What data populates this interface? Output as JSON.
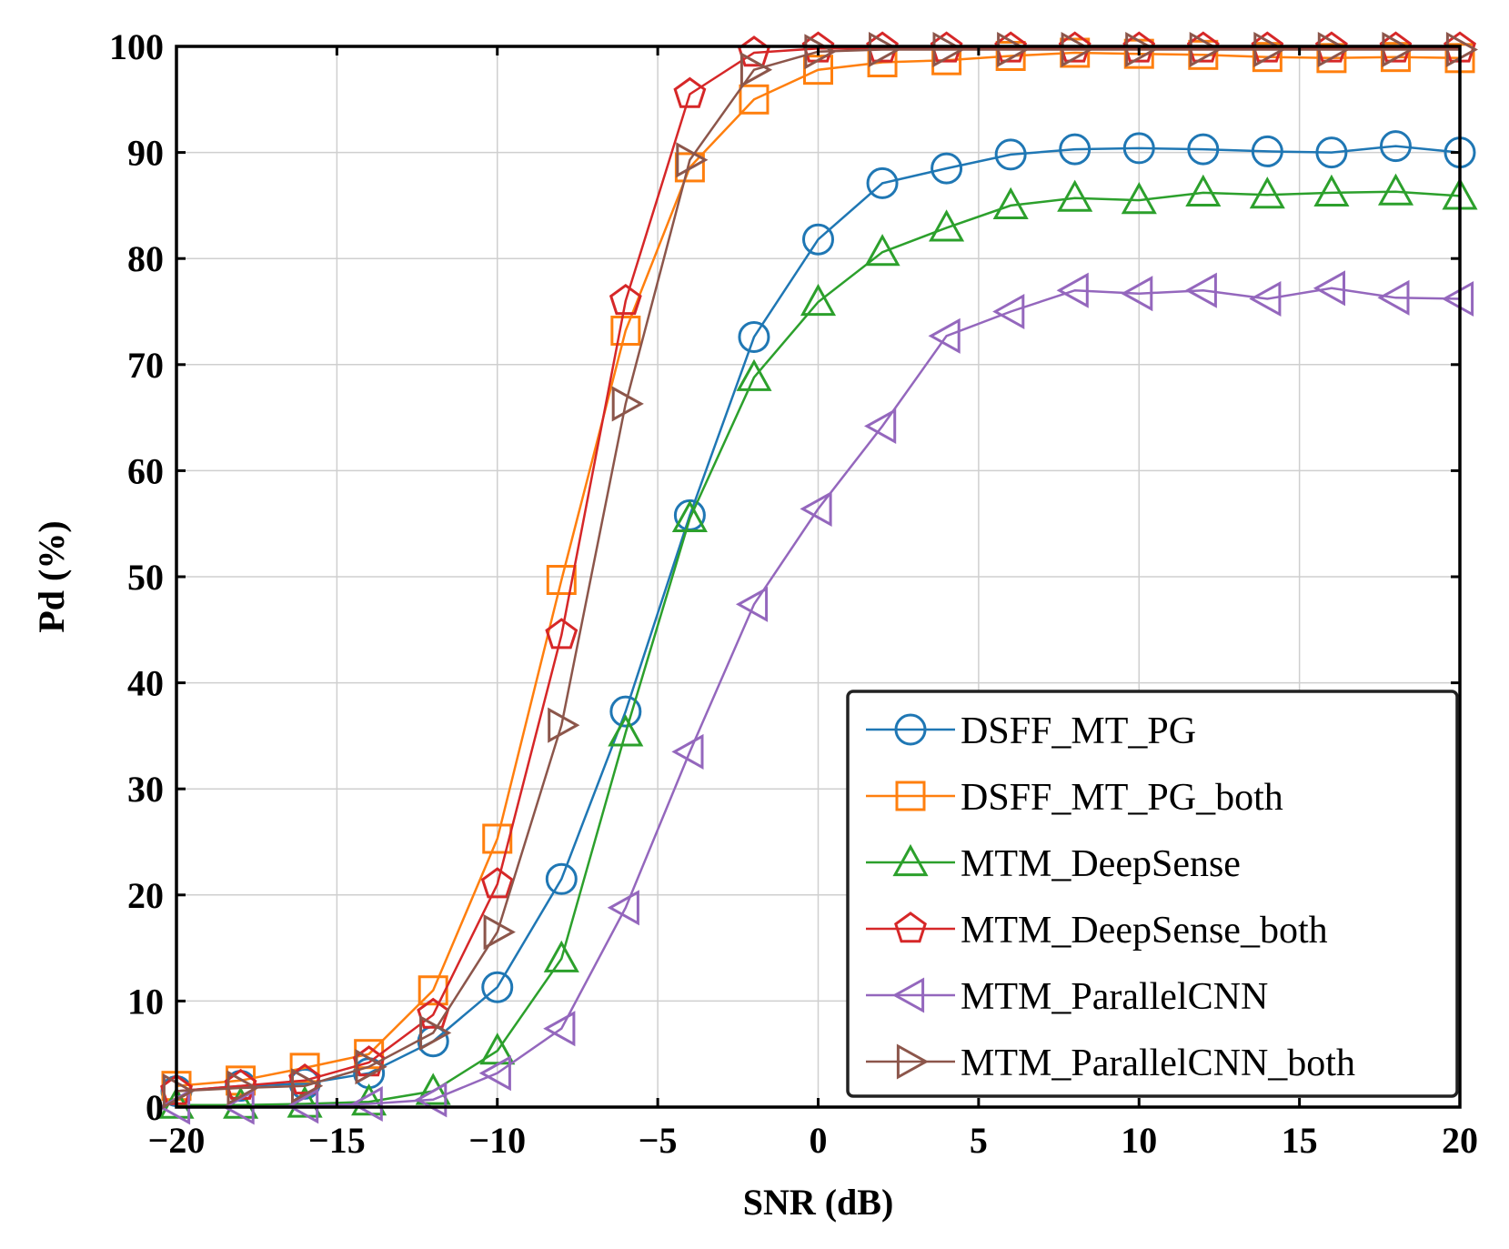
{
  "chart_data": {
    "type": "line",
    "title": "",
    "xlabel": "SNR (dB)",
    "ylabel": "Pd  (%)",
    "xlim": [
      -20,
      20
    ],
    "ylim": [
      0,
      100
    ],
    "xticks": [
      -20,
      -15,
      -10,
      -5,
      0,
      5,
      10,
      15,
      20
    ],
    "xtick_labels": [
      "−20",
      "−15",
      "−10",
      "−5",
      "0",
      "5",
      "10",
      "15",
      "20"
    ],
    "yticks": [
      0,
      10,
      20,
      30,
      40,
      50,
      60,
      70,
      80,
      90,
      100
    ],
    "ytick_labels": [
      "0",
      "10",
      "20",
      "30",
      "40",
      "50",
      "60",
      "70",
      "80",
      "90",
      "100"
    ],
    "grid": true,
    "legend_position": "bottom-right",
    "x": [
      -20,
      -18,
      -16,
      -14,
      -12,
      -10,
      -8,
      -6,
      -4,
      -2,
      0,
      2,
      4,
      6,
      8,
      10,
      12,
      14,
      16,
      18,
      20
    ],
    "series": [
      {
        "name": "DSFF_MT_PG",
        "color": "#1f77b4",
        "marker": "circle",
        "values": [
          1.5,
          2.0,
          2.2,
          3.2,
          6.2,
          11.3,
          21.5,
          37.3,
          55.8,
          72.6,
          81.8,
          87.1,
          88.5,
          89.8,
          90.3,
          90.4,
          90.3,
          90.1,
          90.0,
          90.6,
          90.0
        ]
      },
      {
        "name": "DSFF_MT_PG_both",
        "color": "#ff7f0e",
        "marker": "square",
        "values": [
          2.0,
          2.5,
          3.7,
          5.0,
          11.0,
          25.3,
          49.7,
          73.2,
          88.6,
          95.0,
          97.8,
          98.5,
          98.7,
          99.1,
          99.4,
          99.3,
          99.2,
          99.0,
          98.9,
          99.0,
          98.9
        ]
      },
      {
        "name": "MTM_DeepSense",
        "color": "#2ca02c",
        "marker": "triangle-up",
        "values": [
          0.2,
          0.2,
          0.3,
          0.5,
          1.5,
          5.3,
          14.0,
          35.3,
          55.5,
          68.8,
          75.9,
          80.6,
          82.9,
          85.0,
          85.7,
          85.5,
          86.2,
          86.0,
          86.2,
          86.3,
          85.9
        ]
      },
      {
        "name": "MTM_DeepSense_both",
        "color": "#d62728",
        "marker": "pentagon",
        "values": [
          1.5,
          2.0,
          2.5,
          4.2,
          8.7,
          21.0,
          44.5,
          76.0,
          95.5,
          99.4,
          99.8,
          99.8,
          99.8,
          99.8,
          99.8,
          99.8,
          99.8,
          99.8,
          99.8,
          99.8,
          99.8
        ]
      },
      {
        "name": "MTM_ParallelCNN",
        "color": "#9467bd",
        "marker": "triangle-left",
        "values": [
          0.0,
          0.0,
          0.1,
          0.3,
          0.7,
          3.2,
          7.4,
          18.8,
          33.5,
          47.4,
          56.4,
          64.2,
          72.7,
          75.0,
          77.0,
          76.7,
          77.0,
          76.2,
          77.2,
          76.3,
          76.2
        ]
      },
      {
        "name": "MTM_ParallelCNN_both",
        "color": "#8c564b",
        "marker": "triangle-right",
        "values": [
          1.5,
          1.8,
          2.0,
          3.8,
          7.0,
          16.5,
          36.0,
          66.3,
          89.3,
          97.8,
          99.5,
          99.7,
          99.7,
          99.7,
          99.7,
          99.7,
          99.7,
          99.7,
          99.7,
          99.7,
          99.7
        ]
      }
    ]
  }
}
